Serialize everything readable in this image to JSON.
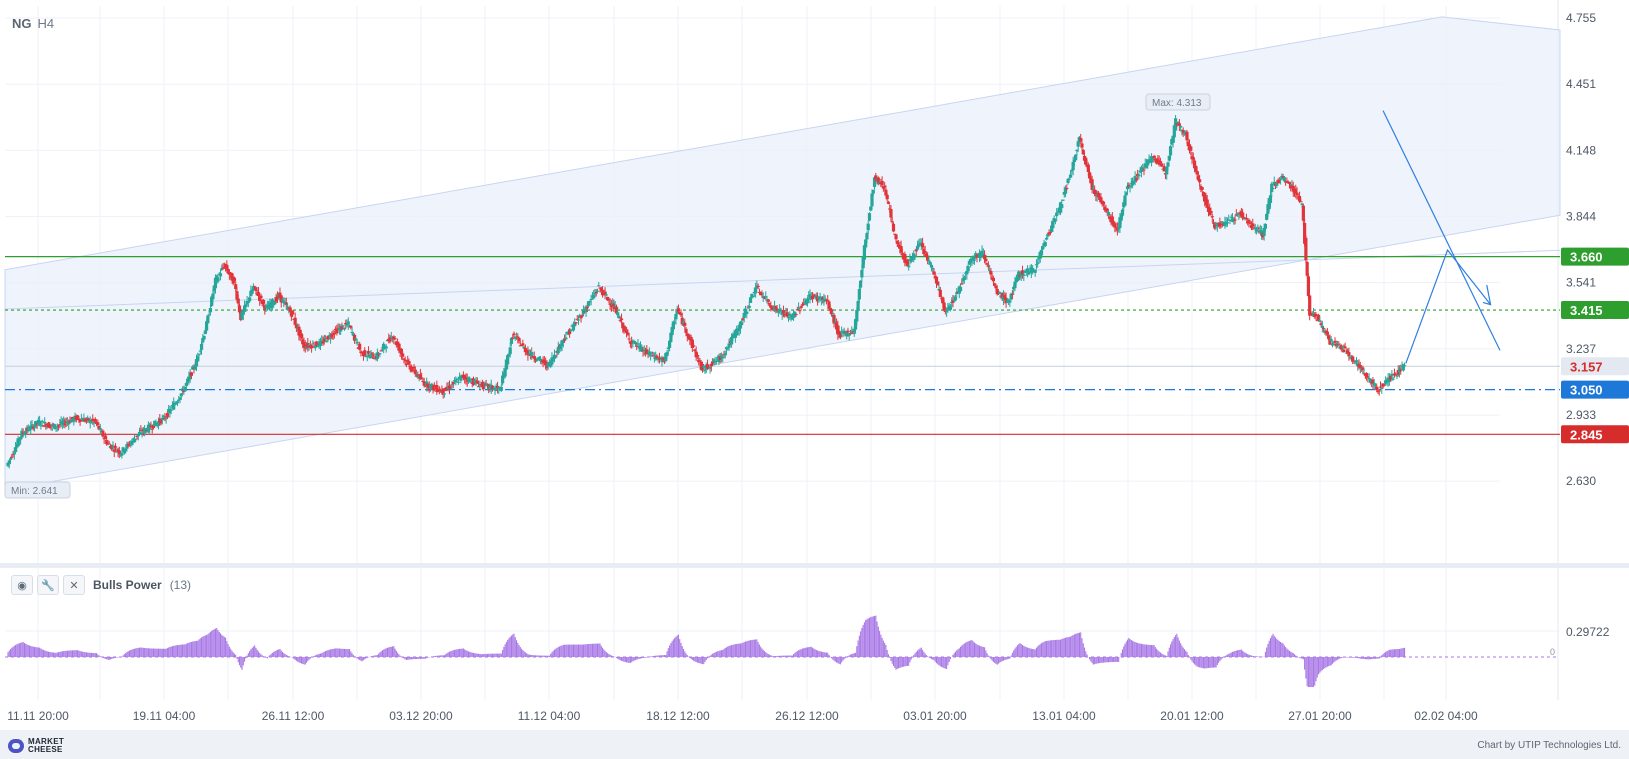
{
  "header": {
    "symbol": "NG",
    "timeframe": "H4"
  },
  "indicator": {
    "name": "Bulls Power",
    "period": "(13)",
    "buttons": [
      {
        "icon": "eye-icon",
        "label": "◉"
      },
      {
        "icon": "wrench-icon",
        "label": "🔧"
      },
      {
        "icon": "close-icon",
        "label": "✕"
      }
    ]
  },
  "footer": {
    "logo_line1": "MARKET",
    "logo_line2": "CHEESE",
    "credit": "Chart by UTIP Technologies Ltd."
  },
  "colors": {
    "bull": "#26a69a",
    "bear": "#e0343a",
    "resistance": "#2e9e2e",
    "support_blue": "#1e78d8",
    "support_red": "#d62c2c",
    "channel_fill": "#e9effb",
    "trend_line": "#2f7fe0",
    "bulls_power": "#a878e6"
  },
  "chart_data": {
    "type": "candlestick",
    "symbol": "NG",
    "timeframe": "H4",
    "y_axis_ticks": [
      "4.755",
      "4.451",
      "4.148",
      "3.844",
      "3.541",
      "3.237",
      "2.933",
      "2.630"
    ],
    "x_axis_ticks": [
      "11.11 20:00",
      "19.11 04:00",
      "26.11 12:00",
      "03.12 20:00",
      "11.12 04:00",
      "18.12 12:00",
      "26.12 12:00",
      "03.01 20:00",
      "13.01 04:00",
      "20.01 12:00",
      "27.01 20:00",
      "02.02 04:00"
    ],
    "ylim": [
      2.36,
      4.81
    ],
    "levels": [
      {
        "label": "3.660",
        "value": 3.66,
        "style": "solid",
        "color": "#2e9e2e"
      },
      {
        "label": "3.415",
        "value": 3.415,
        "style": "dotted",
        "color": "#2e9e2e"
      },
      {
        "label": "3.050",
        "value": 3.05,
        "style": "dashdot",
        "color": "#1e78d8"
      },
      {
        "label": "2.845",
        "value": 2.845,
        "style": "solid",
        "color": "#d62c2c"
      }
    ],
    "current_price": {
      "label": "3.157",
      "value": 3.157
    },
    "annotations": {
      "max": "Max: 4.313",
      "min": "Min: 2.641"
    },
    "price_path": [
      [
        0,
        2.7
      ],
      [
        12,
        2.85
      ],
      [
        25,
        2.9
      ],
      [
        38,
        2.88
      ],
      [
        55,
        2.92
      ],
      [
        70,
        2.9
      ],
      [
        80,
        2.8
      ],
      [
        90,
        2.76
      ],
      [
        105,
        2.85
      ],
      [
        125,
        2.92
      ],
      [
        140,
        3.05
      ],
      [
        150,
        3.18
      ],
      [
        158,
        3.35
      ],
      [
        165,
        3.55
      ],
      [
        172,
        3.62
      ],
      [
        180,
        3.54
      ],
      [
        185,
        3.38
      ],
      [
        195,
        3.52
      ],
      [
        205,
        3.42
      ],
      [
        215,
        3.48
      ],
      [
        225,
        3.4
      ],
      [
        235,
        3.25
      ],
      [
        248,
        3.26
      ],
      [
        260,
        3.32
      ],
      [
        270,
        3.35
      ],
      [
        280,
        3.22
      ],
      [
        292,
        3.2
      ],
      [
        305,
        3.3
      ],
      [
        315,
        3.18
      ],
      [
        330,
        3.08
      ],
      [
        345,
        3.04
      ],
      [
        360,
        3.11
      ],
      [
        375,
        3.07
      ],
      [
        390,
        3.05
      ],
      [
        400,
        3.3
      ],
      [
        412,
        3.22
      ],
      [
        428,
        3.16
      ],
      [
        440,
        3.28
      ],
      [
        455,
        3.4
      ],
      [
        468,
        3.52
      ],
      [
        480,
        3.43
      ],
      [
        492,
        3.28
      ],
      [
        505,
        3.22
      ],
      [
        520,
        3.18
      ],
      [
        530,
        3.42
      ],
      [
        540,
        3.28
      ],
      [
        550,
        3.14
      ],
      [
        565,
        3.2
      ],
      [
        580,
        3.35
      ],
      [
        592,
        3.52
      ],
      [
        605,
        3.43
      ],
      [
        620,
        3.38
      ],
      [
        635,
        3.48
      ],
      [
        648,
        3.46
      ],
      [
        658,
        3.3
      ],
      [
        670,
        3.32
      ],
      [
        678,
        3.7
      ],
      [
        686,
        4.02
      ],
      [
        694,
        3.98
      ],
      [
        702,
        3.75
      ],
      [
        712,
        3.62
      ],
      [
        722,
        3.72
      ],
      [
        732,
        3.6
      ],
      [
        742,
        3.4
      ],
      [
        752,
        3.5
      ],
      [
        762,
        3.65
      ],
      [
        772,
        3.68
      ],
      [
        782,
        3.5
      ],
      [
        792,
        3.45
      ],
      [
        800,
        3.58
      ],
      [
        812,
        3.6
      ],
      [
        820,
        3.72
      ],
      [
        832,
        3.88
      ],
      [
        840,
        4.02
      ],
      [
        848,
        4.2
      ],
      [
        858,
        3.98
      ],
      [
        868,
        3.88
      ],
      [
        878,
        3.78
      ],
      [
        886,
        3.98
      ],
      [
        896,
        4.05
      ],
      [
        906,
        4.12
      ],
      [
        916,
        4.05
      ],
      [
        924,
        4.28
      ],
      [
        932,
        4.22
      ],
      [
        940,
        4.05
      ],
      [
        946,
        3.94
      ],
      [
        955,
        3.8
      ],
      [
        965,
        3.82
      ],
      [
        975,
        3.86
      ],
      [
        985,
        3.8
      ],
      [
        993,
        3.76
      ],
      [
        1000,
        3.98
      ],
      [
        1008,
        4.02
      ],
      [
        1016,
        3.98
      ],
      [
        1024,
        3.9
      ],
      [
        1030,
        3.4
      ],
      [
        1036,
        3.38
      ],
      [
        1046,
        3.27
      ],
      [
        1056,
        3.24
      ],
      [
        1066,
        3.18
      ],
      [
        1076,
        3.1
      ],
      [
        1084,
        3.05
      ],
      [
        1092,
        3.1
      ],
      [
        1100,
        3.13
      ],
      [
        1105,
        3.16
      ]
    ],
    "bulls_power": {
      "tick_label": "0.29722",
      "zero_label": "0"
    }
  }
}
